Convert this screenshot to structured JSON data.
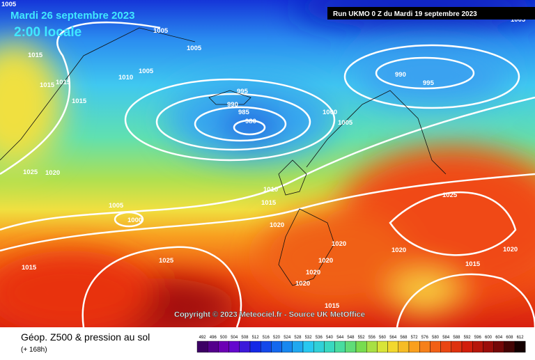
{
  "header": {
    "date": "Mardi 26 septembre 2023",
    "time": "2:00 locale",
    "run": "Run UKMO 0 Z du Mardi 19 septembre 2023"
  },
  "isobar_labels": [
    "1005",
    "1005",
    "1005",
    "1015",
    "1010",
    "1005",
    "1015",
    "1015",
    "1015",
    "995",
    "990",
    "985",
    "980",
    "990",
    "995",
    "1000",
    "1005",
    "1025",
    "1020",
    "1005",
    "1000",
    "1010",
    "1015",
    "1020",
    "1025",
    "1020",
    "1020",
    "1020",
    "1020",
    "1015",
    "1025",
    "1015",
    "1020",
    "1020",
    "1015",
    "1005"
  ],
  "copyright": "Copyright © 2023 Meteociel.fr - Source UK MetOffice",
  "footer": {
    "title": "Géop. Z500 & pression au sol",
    "lead": "(+ 168h)"
  },
  "legend": [
    "492",
    "496",
    "500",
    "504",
    "508",
    "512",
    "516",
    "520",
    "524",
    "528",
    "532",
    "536",
    "540",
    "544",
    "548",
    "552",
    "556",
    "560",
    "564",
    "568",
    "572",
    "576",
    "580",
    "584",
    "588",
    "592",
    "596",
    "600",
    "604",
    "608",
    "612"
  ]
}
